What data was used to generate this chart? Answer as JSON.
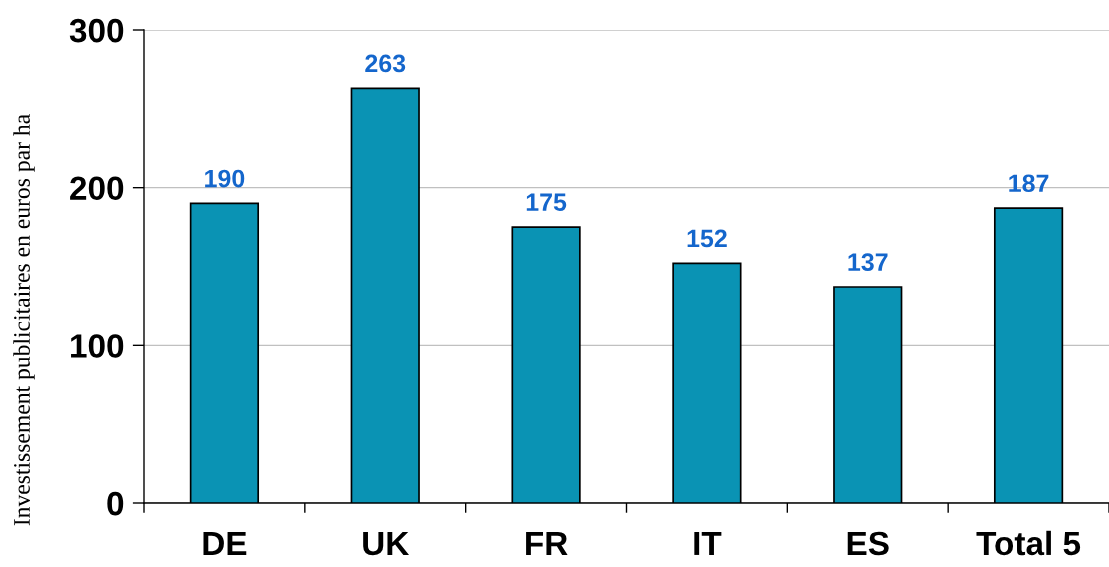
{
  "chart_data": {
    "type": "bar",
    "ylabel": "Investissement publicitaires en euros par ha",
    "categories": [
      "DE",
      "UK",
      "FR",
      "IT",
      "ES",
      "Total 5"
    ],
    "values": [
      190,
      263,
      175,
      152,
      137,
      187
    ],
    "color": "#0a93b4",
    "ylim": [
      0,
      300
    ],
    "yticks": [
      0,
      100,
      200,
      300
    ],
    "grid": "y",
    "data_labels": true
  }
}
